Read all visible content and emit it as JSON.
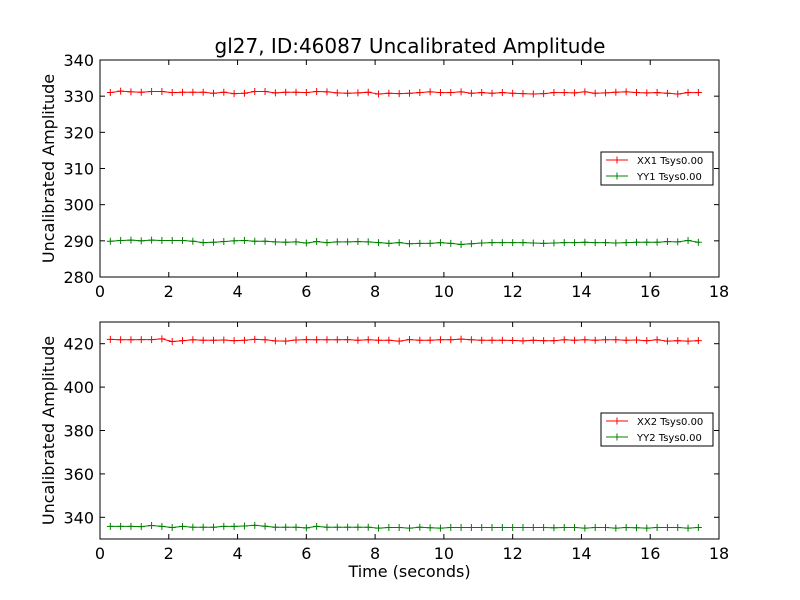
{
  "figure_title": "gl27, ID:46087 Uncalibrated Amplitude",
  "colors": {
    "xx": "#ff0000",
    "yy": "#008000",
    "axes": "#000000"
  },
  "chart_data": [
    {
      "type": "line",
      "title": "gl27, ID:46087 Uncalibrated Amplitude",
      "xlabel": "",
      "ylabel": "Uncalibrated Amplitude",
      "xlim": [
        0,
        18
      ],
      "ylim": [
        280,
        340
      ],
      "xticks": [
        0,
        2,
        4,
        6,
        8,
        10,
        12,
        14,
        16,
        18
      ],
      "yticks": [
        280,
        290,
        300,
        310,
        320,
        330,
        340
      ],
      "grid": false,
      "legend_position": "right",
      "x": [
        0.3,
        0.6,
        0.9,
        1.2,
        1.5,
        1.8,
        2.1,
        2.4,
        2.7,
        3.0,
        3.3,
        3.6,
        3.9,
        4.2,
        4.5,
        4.8,
        5.1,
        5.4,
        5.7,
        6.0,
        6.3,
        6.6,
        6.9,
        7.2,
        7.5,
        7.8,
        8.1,
        8.4,
        8.7,
        9.0,
        9.3,
        9.6,
        9.9,
        10.2,
        10.5,
        10.8,
        11.1,
        11.4,
        11.7,
        12.0,
        12.3,
        12.6,
        12.9,
        13.2,
        13.5,
        13.8,
        14.1,
        14.4,
        14.7,
        15.0,
        15.3,
        15.6,
        15.9,
        16.2,
        16.5,
        16.8,
        17.1,
        17.4
      ],
      "series": [
        {
          "name": "XX1 Tsys0.00",
          "color": "#ff0000",
          "values": [
            331.0,
            331.4,
            331.2,
            331.1,
            331.3,
            331.3,
            331.0,
            331.1,
            331.1,
            331.1,
            330.8,
            331.1,
            330.7,
            330.8,
            331.3,
            331.3,
            330.9,
            331.1,
            331.1,
            331.0,
            331.3,
            331.2,
            330.9,
            330.8,
            330.9,
            331.1,
            330.6,
            330.8,
            330.7,
            330.8,
            331.0,
            331.2,
            331.0,
            331.0,
            331.2,
            330.8,
            331.0,
            330.8,
            331.0,
            330.8,
            330.7,
            330.6,
            330.7,
            331.0,
            331.0,
            330.9,
            331.2,
            330.8,
            330.9,
            331.1,
            331.2,
            331.0,
            330.9,
            331.0,
            330.8,
            330.6,
            331.0,
            331.0
          ]
        },
        {
          "name": "YY1 Tsys0.00",
          "color": "#008000",
          "values": [
            289.9,
            290.1,
            290.2,
            290.0,
            290.2,
            290.1,
            290.1,
            290.1,
            289.9,
            289.5,
            289.6,
            289.8,
            290.0,
            290.1,
            289.9,
            289.9,
            289.7,
            289.6,
            289.7,
            289.4,
            289.8,
            289.5,
            289.7,
            289.7,
            289.8,
            289.7,
            289.5,
            289.3,
            289.5,
            289.2,
            289.3,
            289.3,
            289.5,
            289.3,
            289.0,
            289.2,
            289.4,
            289.5,
            289.5,
            289.5,
            289.5,
            289.4,
            289.3,
            289.4,
            289.5,
            289.5,
            289.6,
            289.5,
            289.5,
            289.4,
            289.5,
            289.6,
            289.6,
            289.6,
            289.8,
            289.7,
            290.1,
            289.6
          ]
        }
      ]
    },
    {
      "type": "line",
      "title": "",
      "xlabel": "Time (seconds)",
      "ylabel": "Uncalibrated Amplitude",
      "xlim": [
        0,
        18
      ],
      "ylim": [
        330,
        430
      ],
      "xticks": [
        0,
        2,
        4,
        6,
        8,
        10,
        12,
        14,
        16,
        18
      ],
      "yticks": [
        340,
        360,
        380,
        400,
        420
      ],
      "grid": false,
      "legend_position": "right",
      "x": [
        0.3,
        0.6,
        0.9,
        1.2,
        1.5,
        1.8,
        2.1,
        2.4,
        2.7,
        3.0,
        3.3,
        3.6,
        3.9,
        4.2,
        4.5,
        4.8,
        5.1,
        5.4,
        5.7,
        6.0,
        6.3,
        6.6,
        6.9,
        7.2,
        7.5,
        7.8,
        8.1,
        8.4,
        8.7,
        9.0,
        9.3,
        9.6,
        9.9,
        10.2,
        10.5,
        10.8,
        11.1,
        11.4,
        11.7,
        12.0,
        12.3,
        12.6,
        12.9,
        13.2,
        13.5,
        13.8,
        14.1,
        14.4,
        14.7,
        15.0,
        15.3,
        15.6,
        15.9,
        16.2,
        16.5,
        16.8,
        17.1,
        17.4
      ],
      "series": [
        {
          "name": "XX2 Tsys0.00",
          "color": "#ff0000",
          "values": [
            422.0,
            421.8,
            421.8,
            421.9,
            421.9,
            422.2,
            421.0,
            421.4,
            421.8,
            421.6,
            421.6,
            421.7,
            421.4,
            421.6,
            422.0,
            421.8,
            421.3,
            421.2,
            421.7,
            421.9,
            421.8,
            421.8,
            421.8,
            421.9,
            421.6,
            421.8,
            421.6,
            421.6,
            421.2,
            421.9,
            421.6,
            421.6,
            421.8,
            421.8,
            422.1,
            421.8,
            421.6,
            421.6,
            421.6,
            421.5,
            421.3,
            421.6,
            421.4,
            421.4,
            421.8,
            421.6,
            421.8,
            421.6,
            421.8,
            421.8,
            421.6,
            421.7,
            421.4,
            421.8,
            421.2,
            421.4,
            421.2,
            421.4
          ]
        },
        {
          "name": "YY2 Tsys0.00",
          "color": "#008000",
          "values": [
            335.8,
            335.8,
            335.8,
            335.7,
            336.2,
            335.8,
            335.3,
            335.8,
            335.4,
            335.4,
            335.4,
            335.8,
            335.8,
            336.0,
            336.3,
            335.9,
            335.4,
            335.4,
            335.4,
            335.1,
            335.8,
            335.4,
            335.4,
            335.4,
            335.4,
            335.4,
            335.0,
            335.3,
            335.3,
            335.0,
            335.4,
            335.2,
            335.0,
            335.3,
            335.3,
            335.3,
            335.3,
            335.3,
            335.3,
            335.3,
            335.3,
            335.3,
            335.3,
            335.2,
            335.3,
            335.3,
            335.0,
            335.3,
            335.3,
            335.0,
            335.3,
            335.2,
            335.0,
            335.3,
            335.3,
            335.3,
            335.0,
            335.3
          ]
        }
      ]
    }
  ]
}
